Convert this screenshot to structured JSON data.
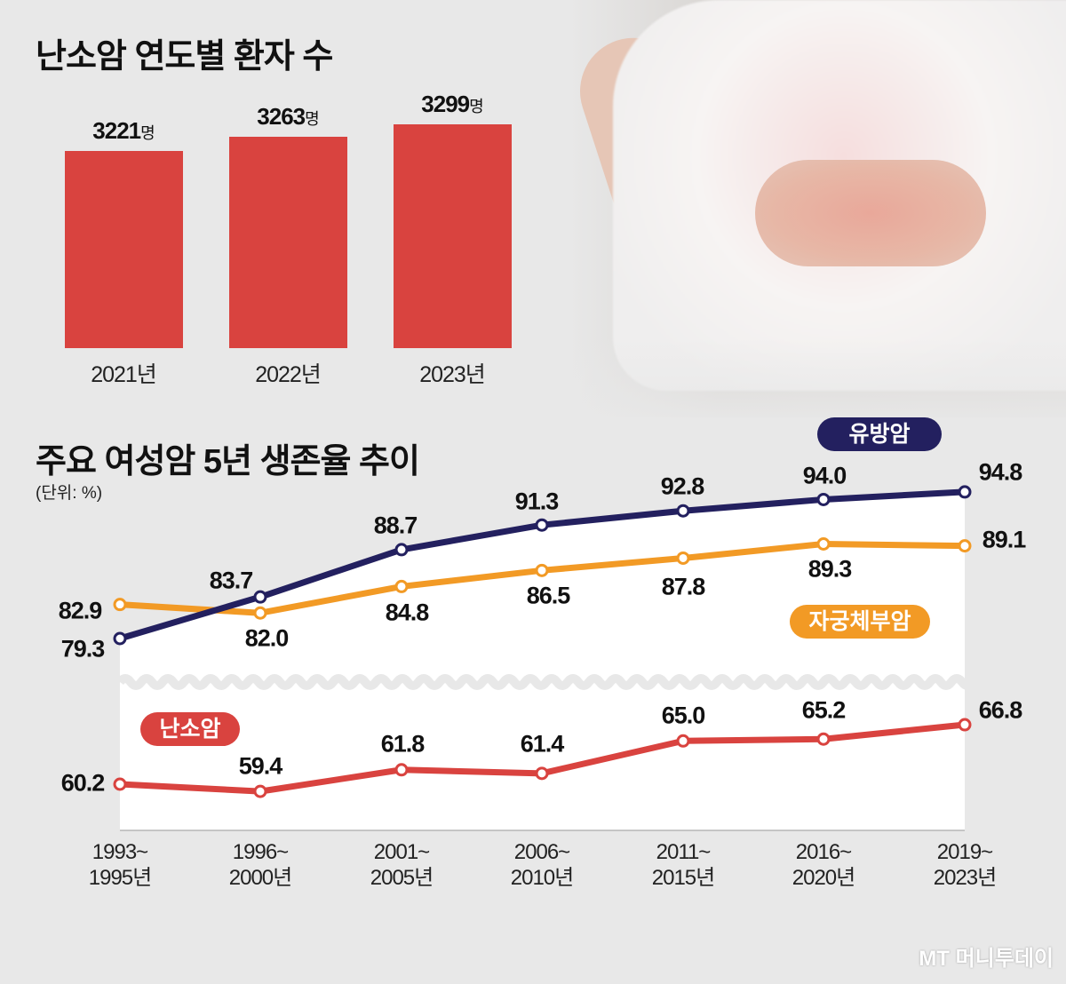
{
  "bar_section": {
    "title": "난소암 연도별 환자 수",
    "unit_suffix": "명"
  },
  "line_section": {
    "title": "주요 여성암 5년 생존율 추이",
    "unit": "(단위: %)"
  },
  "logo": "MT 머니투데이",
  "colors": {
    "bar": "#d9433f",
    "breast": "#23205f",
    "uterine": "#f29a25",
    "ovarian": "#d9433f"
  },
  "chart_data": [
    {
      "type": "bar",
      "title": "난소암 연도별 환자 수",
      "categories": [
        "2021년",
        "2022년",
        "2023년"
      ],
      "values": [
        3221,
        3263,
        3299
      ],
      "value_labels": [
        "3221",
        "3263",
        "3299"
      ],
      "ylabel": "명"
    },
    {
      "type": "line",
      "title": "주요 여성암 5년 생존율 추이",
      "ylabel": "(단위: %)",
      "categories": [
        "1993~\n1995년",
        "1996~\n2000년",
        "2001~\n2005년",
        "2006~\n2010년",
        "2011~\n2015년",
        "2016~\n2020년",
        "2019~\n2023년"
      ],
      "axis_break": true,
      "series": [
        {
          "name": "유방암",
          "values": [
            79.3,
            83.7,
            88.7,
            91.3,
            92.8,
            94.0,
            94.8
          ],
          "labels": [
            "79.3",
            "83.7",
            "88.7",
            "91.3",
            "92.8",
            "94.0",
            "94.8"
          ]
        },
        {
          "name": "자궁체부암",
          "values": [
            82.9,
            82.0,
            84.8,
            86.5,
            87.8,
            89.3,
            89.1
          ],
          "labels": [
            "82.9",
            "82.0",
            "84.8",
            "86.5",
            "87.8",
            "89.3",
            "89.1"
          ]
        },
        {
          "name": "난소암",
          "values": [
            60.2,
            59.4,
            61.8,
            61.4,
            65.0,
            65.2,
            66.8
          ],
          "labels": [
            "60.2",
            "59.4",
            "61.8",
            "61.4",
            "65.0",
            "65.2",
            "66.8"
          ]
        }
      ]
    }
  ]
}
